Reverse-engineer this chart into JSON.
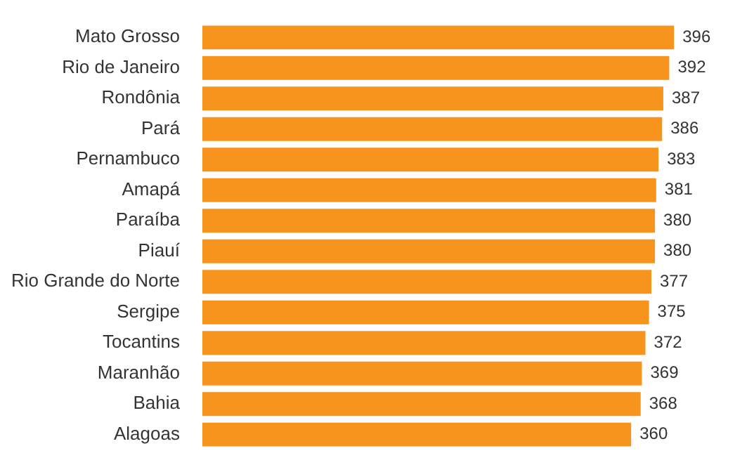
{
  "chart_data": {
    "type": "bar",
    "orientation": "horizontal",
    "data_labels": true,
    "categories": [
      "Mato Grosso",
      "Rio de Janeiro",
      "Rondônia",
      "Pará",
      "Pernambuco",
      "Amapá",
      "Paraíba",
      "Piauí",
      "Rio Grande do Norte",
      "Sergipe",
      "Tocantins",
      "Maranhão",
      "Bahia",
      "Alagoas"
    ],
    "values": [
      396,
      392,
      387,
      386,
      383,
      381,
      380,
      380,
      377,
      375,
      372,
      369,
      368,
      360
    ],
    "color": "#f7941d"
  }
}
